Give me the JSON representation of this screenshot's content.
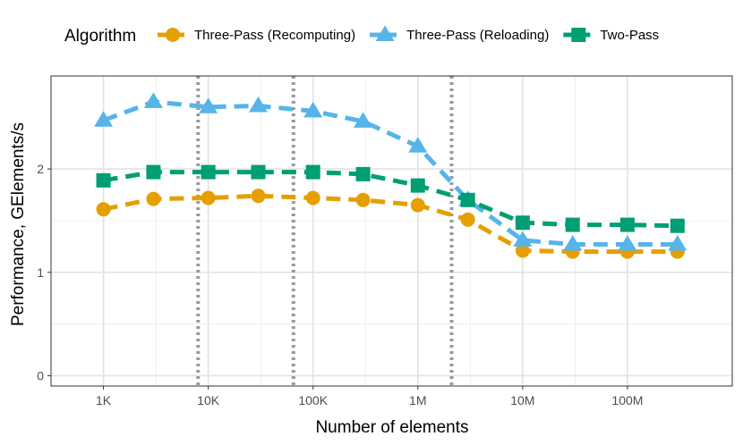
{
  "chart_data": {
    "type": "line",
    "title": "",
    "xlabel": "Number of elements",
    "ylabel": "Performance, GElements/s",
    "x_scale": "log10",
    "x": [
      1000,
      3000,
      10000,
      30000,
      100000,
      300000,
      1000000,
      3000000,
      10000000,
      30000000,
      100000000,
      300000000
    ],
    "xlim": [
      316,
      1000000000
    ],
    "ylim": [
      -0.1,
      2.9
    ],
    "x_ticks": [
      {
        "value": 1000,
        "label": "1K"
      },
      {
        "value": 10000,
        "label": "10K"
      },
      {
        "value": 100000,
        "label": "100K"
      },
      {
        "value": 1000000,
        "label": "1M"
      },
      {
        "value": 10000000,
        "label": "10M"
      },
      {
        "value": 100000000,
        "label": "100M"
      }
    ],
    "y_ticks": [
      {
        "value": 0,
        "label": "0"
      },
      {
        "value": 1,
        "label": "1"
      },
      {
        "value": 2,
        "label": "2"
      }
    ],
    "grid": true,
    "reference_lines": {
      "style": "dotted",
      "color": "#999999",
      "x": [
        8000,
        65000,
        2100000
      ]
    },
    "legend": {
      "title": "Algorithm",
      "position": "top"
    },
    "series": [
      {
        "name": "Three-Pass (Recomputing)",
        "color": "#E69F00",
        "marker": "circle",
        "values": [
          1.61,
          1.71,
          1.72,
          1.74,
          1.72,
          1.7,
          1.65,
          1.51,
          1.21,
          1.2,
          1.2,
          1.2
        ]
      },
      {
        "name": "Three-Pass (Reloading)",
        "color": "#56B4E9",
        "marker": "triangle",
        "values": [
          2.47,
          2.65,
          2.6,
          2.61,
          2.56,
          2.46,
          2.22,
          1.7,
          1.31,
          1.27,
          1.27,
          1.27
        ]
      },
      {
        "name": "Two-Pass",
        "color": "#009E73",
        "marker": "square",
        "values": [
          1.89,
          1.97,
          1.97,
          1.97,
          1.97,
          1.95,
          1.84,
          1.7,
          1.48,
          1.46,
          1.46,
          1.45
        ]
      }
    ]
  }
}
